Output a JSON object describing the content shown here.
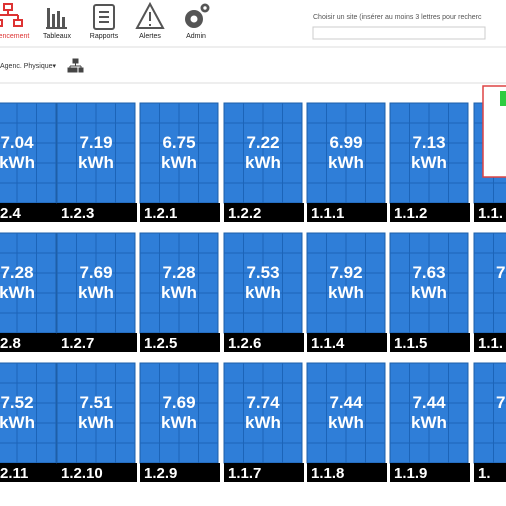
{
  "toolbar": {
    "items": [
      "encement",
      "Tableaux",
      "Rapports",
      "Alertes",
      "Admin"
    ]
  },
  "search": {
    "label": "Choisir un site (insérer au moins 3 lettres pour recherc"
  },
  "filter": {
    "label": "Agenc. Physique▾"
  },
  "unit": "kWh",
  "panels": [
    [
      {
        "value": "7.04",
        "id": "2.4"
      },
      {
        "value": "7.19",
        "id": "1.2.3"
      },
      {
        "value": "6.75",
        "id": "1.2.1"
      },
      {
        "value": "7.22",
        "id": "1.2.2"
      },
      {
        "value": "6.99",
        "id": "1.1.1"
      },
      {
        "value": "7.13",
        "id": "1.1.2"
      },
      {
        "id": "1.1."
      }
    ],
    [
      {
        "value": "7.28",
        "id": "2.8"
      },
      {
        "value": "7.69",
        "id": "1.2.7"
      },
      {
        "value": "7.28",
        "id": "1.2.5"
      },
      {
        "value": "7.53",
        "id": "1.2.6"
      },
      {
        "value": "7.92",
        "id": "1.1.4"
      },
      {
        "value": "7.63",
        "id": "1.1.5"
      },
      {
        "value": "7",
        "id": "1.1."
      }
    ],
    [
      {
        "value": "7.52",
        "id": "2.11"
      },
      {
        "value": "7.51",
        "id": "1.2.10"
      },
      {
        "value": "7.69",
        "id": "1.2.9"
      },
      {
        "value": "7.74",
        "id": "1.1.7"
      },
      {
        "value": "7.44",
        "id": "1.1.8"
      },
      {
        "value": "7.44",
        "id": "1.1.9"
      },
      {
        "value": "7",
        "id": "1."
      }
    ]
  ]
}
